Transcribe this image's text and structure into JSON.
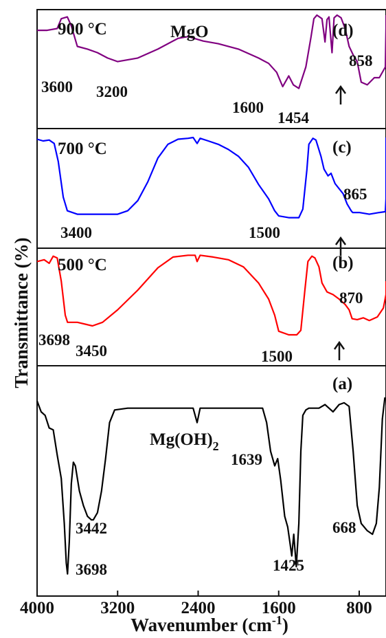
{
  "chart_data": {
    "type": "line",
    "xlabel": "Wavenumber (cm",
    "xlabel_sup": "-1",
    "xlabel_close": ")",
    "ylabel": "Transmittance (%)",
    "x_ticks": [
      4000,
      3200,
      2400,
      1600,
      800
    ],
    "x_tick_labels": [
      "4000",
      "3200",
      "2400",
      "1600",
      "800"
    ],
    "xlim": [
      4000,
      400
    ],
    "x_reversed": true,
    "panels": [
      {
        "id": "d",
        "label": "(d)",
        "temperature": "900 °C",
        "compound": "MgO",
        "color": "#800080",
        "peak_labels": [
          "3600",
          "3200",
          "1600",
          "1454",
          "858"
        ],
        "arrow": true,
        "points": [
          [
            4000,
            0.83
          ],
          [
            3900,
            0.83
          ],
          [
            3800,
            0.85
          ],
          [
            3760,
            0.96
          ],
          [
            3700,
            0.98
          ],
          [
            3660,
            0.88
          ],
          [
            3600,
            0.65
          ],
          [
            3500,
            0.62
          ],
          [
            3400,
            0.58
          ],
          [
            3300,
            0.52
          ],
          [
            3200,
            0.48
          ],
          [
            3000,
            0.52
          ],
          [
            2800,
            0.62
          ],
          [
            2600,
            0.74
          ],
          [
            2500,
            0.76
          ],
          [
            2350,
            0.71
          ],
          [
            2200,
            0.68
          ],
          [
            2000,
            0.62
          ],
          [
            1800,
            0.52
          ],
          [
            1700,
            0.46
          ],
          [
            1620,
            0.36
          ],
          [
            1560,
            0.2
          ],
          [
            1500,
            0.32
          ],
          [
            1454,
            0.22
          ],
          [
            1400,
            0.18
          ],
          [
            1330,
            0.42
          ],
          [
            1280,
            0.75
          ],
          [
            1250,
            0.96
          ],
          [
            1220,
            1.0
          ],
          [
            1170,
            0.96
          ],
          [
            1140,
            0.7
          ],
          [
            1120,
            0.95
          ],
          [
            1100,
            0.98
          ],
          [
            1070,
            0.58
          ],
          [
            1050,
            0.97
          ],
          [
            1020,
            1.0
          ],
          [
            980,
            0.97
          ],
          [
            940,
            0.85
          ],
          [
            900,
            0.65
          ],
          [
            858,
            0.55
          ],
          [
            820,
            0.48
          ],
          [
            780,
            0.25
          ],
          [
            720,
            0.22
          ],
          [
            650,
            0.3
          ],
          [
            600,
            0.3
          ],
          [
            540,
            0.42
          ],
          [
            500,
            0.85
          ],
          [
            470,
            1.0
          ]
        ]
      },
      {
        "id": "c",
        "label": "(c)",
        "temperature": "700 °C",
        "compound": "",
        "color": "#0000ff",
        "peak_labels": [
          "3400",
          "1500",
          "865"
        ],
        "arrow": true,
        "points": [
          [
            4000,
            0.98
          ],
          [
            3940,
            0.96
          ],
          [
            3880,
            0.97
          ],
          [
            3830,
            0.93
          ],
          [
            3790,
            0.72
          ],
          [
            3740,
            0.3
          ],
          [
            3700,
            0.14
          ],
          [
            3600,
            0.1
          ],
          [
            3400,
            0.1
          ],
          [
            3200,
            0.1
          ],
          [
            3100,
            0.14
          ],
          [
            3000,
            0.26
          ],
          [
            2900,
            0.48
          ],
          [
            2800,
            0.76
          ],
          [
            2700,
            0.92
          ],
          [
            2600,
            0.98
          ],
          [
            2500,
            0.99
          ],
          [
            2450,
            1.0
          ],
          [
            2410,
            0.93
          ],
          [
            2380,
            0.99
          ],
          [
            2300,
            0.96
          ],
          [
            2200,
            0.92
          ],
          [
            2100,
            0.86
          ],
          [
            2000,
            0.78
          ],
          [
            1900,
            0.65
          ],
          [
            1800,
            0.45
          ],
          [
            1700,
            0.28
          ],
          [
            1640,
            0.14
          ],
          [
            1600,
            0.08
          ],
          [
            1500,
            0.06
          ],
          [
            1400,
            0.06
          ],
          [
            1360,
            0.16
          ],
          [
            1320,
            0.62
          ],
          [
            1300,
            0.92
          ],
          [
            1260,
            0.99
          ],
          [
            1230,
            0.97
          ],
          [
            1180,
            0.78
          ],
          [
            1150,
            0.63
          ],
          [
            1110,
            0.55
          ],
          [
            1080,
            0.58
          ],
          [
            1040,
            0.46
          ],
          [
            1000,
            0.4
          ],
          [
            960,
            0.34
          ],
          [
            920,
            0.22
          ],
          [
            880,
            0.14
          ],
          [
            865,
            0.12
          ],
          [
            800,
            0.12
          ],
          [
            700,
            0.1
          ],
          [
            600,
            0.12
          ],
          [
            540,
            0.13
          ],
          [
            500,
            0.28
          ],
          [
            470,
            0.62
          ],
          [
            440,
            1.0
          ]
        ]
      },
      {
        "id": "b",
        "label": "(b)",
        "temperature": "500 °C",
        "compound": "",
        "color": "#ff0000",
        "peak_labels": [
          "3698",
          "3450",
          "1500",
          "870"
        ],
        "arrow": true,
        "points": [
          [
            4000,
            0.92
          ],
          [
            3930,
            0.94
          ],
          [
            3880,
            0.9
          ],
          [
            3840,
            0.98
          ],
          [
            3800,
            0.96
          ],
          [
            3760,
            0.7
          ],
          [
            3720,
            0.32
          ],
          [
            3698,
            0.24
          ],
          [
            3600,
            0.24
          ],
          [
            3450,
            0.2
          ],
          [
            3350,
            0.24
          ],
          [
            3200,
            0.38
          ],
          [
            3000,
            0.6
          ],
          [
            2800,
            0.85
          ],
          [
            2650,
            0.97
          ],
          [
            2500,
            0.99
          ],
          [
            2430,
            0.99
          ],
          [
            2410,
            0.92
          ],
          [
            2380,
            0.99
          ],
          [
            2250,
            0.97
          ],
          [
            2100,
            0.94
          ],
          [
            1950,
            0.86
          ],
          [
            1800,
            0.68
          ],
          [
            1700,
            0.5
          ],
          [
            1640,
            0.32
          ],
          [
            1600,
            0.14
          ],
          [
            1500,
            0.1
          ],
          [
            1420,
            0.1
          ],
          [
            1380,
            0.15
          ],
          [
            1340,
            0.6
          ],
          [
            1310,
            0.92
          ],
          [
            1270,
            0.98
          ],
          [
            1240,
            0.96
          ],
          [
            1200,
            0.86
          ],
          [
            1170,
            0.68
          ],
          [
            1120,
            0.58
          ],
          [
            1060,
            0.55
          ],
          [
            1000,
            0.5
          ],
          [
            940,
            0.44
          ],
          [
            900,
            0.38
          ],
          [
            870,
            0.28
          ],
          [
            820,
            0.27
          ],
          [
            760,
            0.29
          ],
          [
            700,
            0.26
          ],
          [
            620,
            0.3
          ],
          [
            560,
            0.4
          ],
          [
            500,
            0.55
          ],
          [
            460,
            0.66
          ],
          [
            440,
            0.7
          ]
        ]
      },
      {
        "id": "a",
        "label": "(a)",
        "compound": "Mg(OH)",
        "compound_sub": "2",
        "color": "#000000",
        "peak_labels": [
          "3442",
          "3698",
          "1639",
          "1425",
          "668"
        ],
        "arrow": false,
        "points": [
          [
            4000,
            0.98
          ],
          [
            3960,
            0.92
          ],
          [
            3920,
            0.9
          ],
          [
            3880,
            0.83
          ],
          [
            3840,
            0.82
          ],
          [
            3800,
            0.68
          ],
          [
            3760,
            0.55
          ],
          [
            3730,
            0.3
          ],
          [
            3710,
            0.08
          ],
          [
            3698,
            0.02
          ],
          [
            3680,
            0.2
          ],
          [
            3660,
            0.52
          ],
          [
            3640,
            0.64
          ],
          [
            3620,
            0.62
          ],
          [
            3580,
            0.48
          ],
          [
            3540,
            0.4
          ],
          [
            3500,
            0.34
          ],
          [
            3460,
            0.32
          ],
          [
            3442,
            0.32
          ],
          [
            3400,
            0.36
          ],
          [
            3360,
            0.48
          ],
          [
            3320,
            0.66
          ],
          [
            3280,
            0.86
          ],
          [
            3230,
            0.93
          ],
          [
            3100,
            0.94
          ],
          [
            2800,
            0.94
          ],
          [
            2450,
            0.94
          ],
          [
            2410,
            0.86
          ],
          [
            2380,
            0.94
          ],
          [
            2200,
            0.94
          ],
          [
            1900,
            0.94
          ],
          [
            1760,
            0.94
          ],
          [
            1720,
            0.86
          ],
          [
            1680,
            0.7
          ],
          [
            1639,
            0.62
          ],
          [
            1610,
            0.66
          ],
          [
            1580,
            0.54
          ],
          [
            1540,
            0.34
          ],
          [
            1510,
            0.28
          ],
          [
            1490,
            0.2
          ],
          [
            1470,
            0.12
          ],
          [
            1450,
            0.24
          ],
          [
            1425,
            0.06
          ],
          [
            1400,
            0.3
          ],
          [
            1380,
            0.7
          ],
          [
            1360,
            0.9
          ],
          [
            1330,
            0.93
          ],
          [
            1300,
            0.94
          ],
          [
            1200,
            0.94
          ],
          [
            1140,
            0.96
          ],
          [
            1100,
            0.94
          ],
          [
            1060,
            0.92
          ],
          [
            1000,
            0.96
          ],
          [
            950,
            0.97
          ],
          [
            900,
            0.95
          ],
          [
            860,
            0.7
          ],
          [
            820,
            0.4
          ],
          [
            780,
            0.3
          ],
          [
            720,
            0.26
          ],
          [
            668,
            0.24
          ],
          [
            630,
            0.3
          ],
          [
            600,
            0.5
          ],
          [
            570,
            0.88
          ],
          [
            545,
            1.0
          ]
        ]
      }
    ]
  }
}
